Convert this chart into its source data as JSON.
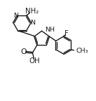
{
  "bg_color": "#ffffff",
  "line_color": "#1a1a1a",
  "line_width": 1.0,
  "font_size": 6.8,
  "figsize": [
    1.37,
    1.44
  ],
  "dpi": 100,
  "xlim": [
    0,
    10
  ],
  "ylim": [
    0,
    10.5
  ]
}
